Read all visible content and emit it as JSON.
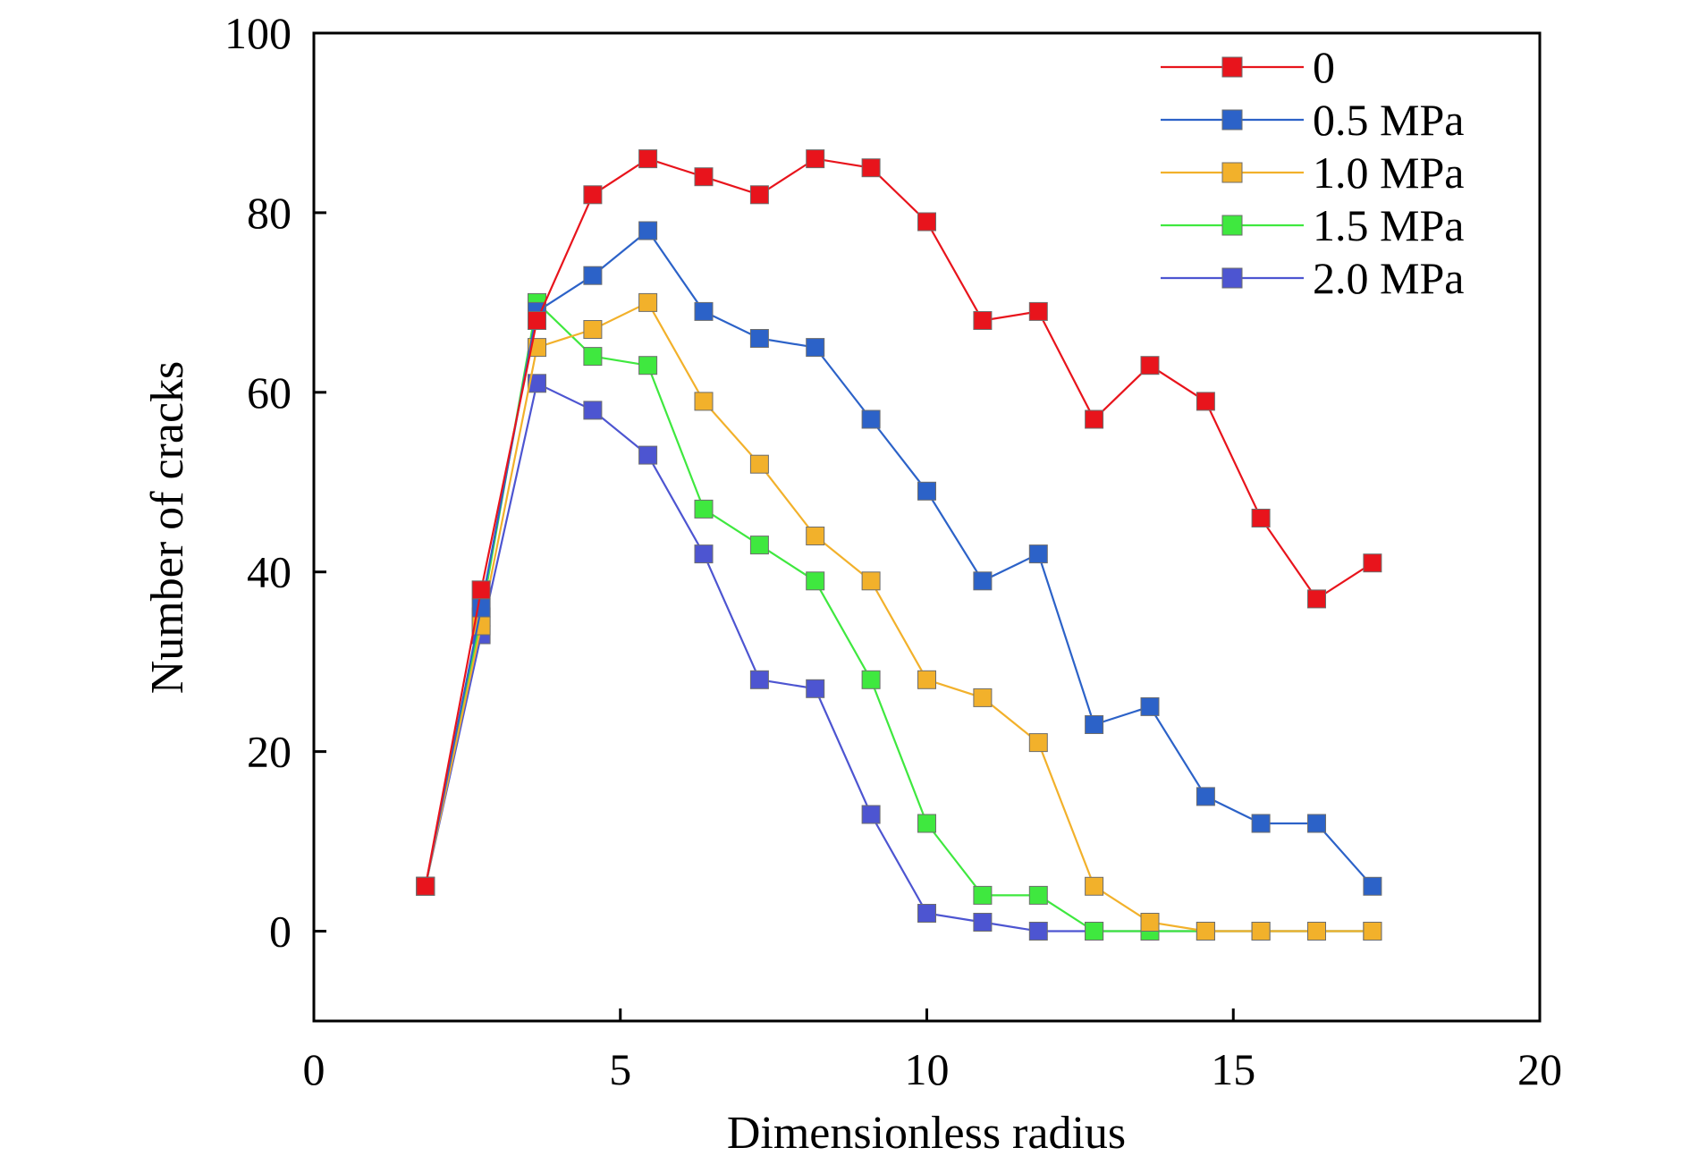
{
  "chart_data": {
    "type": "line",
    "title": "",
    "xlabel": "Dimensionless radius",
    "ylabel": "Number of cracks",
    "xlim": [
      0,
      20
    ],
    "ylim": [
      -10,
      100
    ],
    "xticks": [
      0,
      5,
      10,
      15,
      20
    ],
    "yticks": [
      0,
      20,
      40,
      60,
      80,
      100
    ],
    "grid": false,
    "legend_position": "top-right",
    "marker": "square",
    "series": [
      {
        "name": "0",
        "color": "#e8141c",
        "x": [
          1.82,
          2.73,
          3.64,
          4.55,
          5.45,
          6.36,
          7.27,
          8.18,
          9.09,
          10.0,
          10.91,
          11.82,
          12.73,
          13.64,
          14.55,
          15.45,
          16.36,
          17.27
        ],
        "y": [
          5,
          38,
          68,
          82,
          86,
          84,
          82,
          86,
          85,
          79,
          68,
          69,
          57,
          63,
          59,
          46,
          37,
          41
        ]
      },
      {
        "name": "0.5 MPa",
        "color": "#2c62c8",
        "x": [
          1.82,
          2.73,
          3.64,
          4.55,
          5.45,
          6.36,
          7.27,
          8.18,
          9.09,
          10.0,
          10.91,
          11.82,
          12.73,
          13.64,
          14.55,
          15.45,
          16.36,
          17.27
        ],
        "y": [
          5,
          36,
          69,
          73,
          78,
          69,
          66,
          65,
          57,
          49,
          39,
          42,
          23,
          25,
          15,
          12,
          12,
          5
        ]
      },
      {
        "name": "1.0 MPa",
        "color": "#f2b12b",
        "x": [
          1.82,
          2.73,
          3.64,
          4.55,
          5.45,
          6.36,
          7.27,
          8.18,
          9.09,
          10.0,
          10.91,
          11.82,
          12.73,
          13.64,
          14.55,
          15.45,
          16.36,
          17.27
        ],
        "y": [
          5,
          34,
          65,
          67,
          70,
          59,
          52,
          44,
          39,
          28,
          26,
          21,
          5,
          1,
          0,
          0,
          0,
          0
        ]
      },
      {
        "name": "1.5 MPa",
        "color": "#3fe83f",
        "x": [
          1.82,
          2.73,
          3.64,
          4.55,
          5.45,
          6.36,
          7.27,
          8.18,
          9.09,
          10.0,
          10.91,
          11.82,
          12.73,
          13.64,
          14.55,
          15.45,
          16.36,
          17.27
        ],
        "y": [
          5,
          35,
          70,
          64,
          63,
          47,
          43,
          39,
          28,
          12,
          4,
          4,
          0,
          0,
          0,
          0,
          0,
          0
        ]
      },
      {
        "name": "2.0 MPa",
        "color": "#4d55d1",
        "x": [
          1.82,
          2.73,
          3.64,
          4.55,
          5.45,
          6.36,
          7.27,
          8.18,
          9.09,
          10.0,
          10.91,
          11.82,
          12.73,
          13.64,
          14.55,
          15.45,
          16.36,
          17.27
        ],
        "y": [
          5,
          33,
          61,
          58,
          53,
          42,
          28,
          27,
          13,
          2,
          1,
          0,
          0,
          0,
          0,
          0,
          0,
          0
        ]
      }
    ]
  }
}
